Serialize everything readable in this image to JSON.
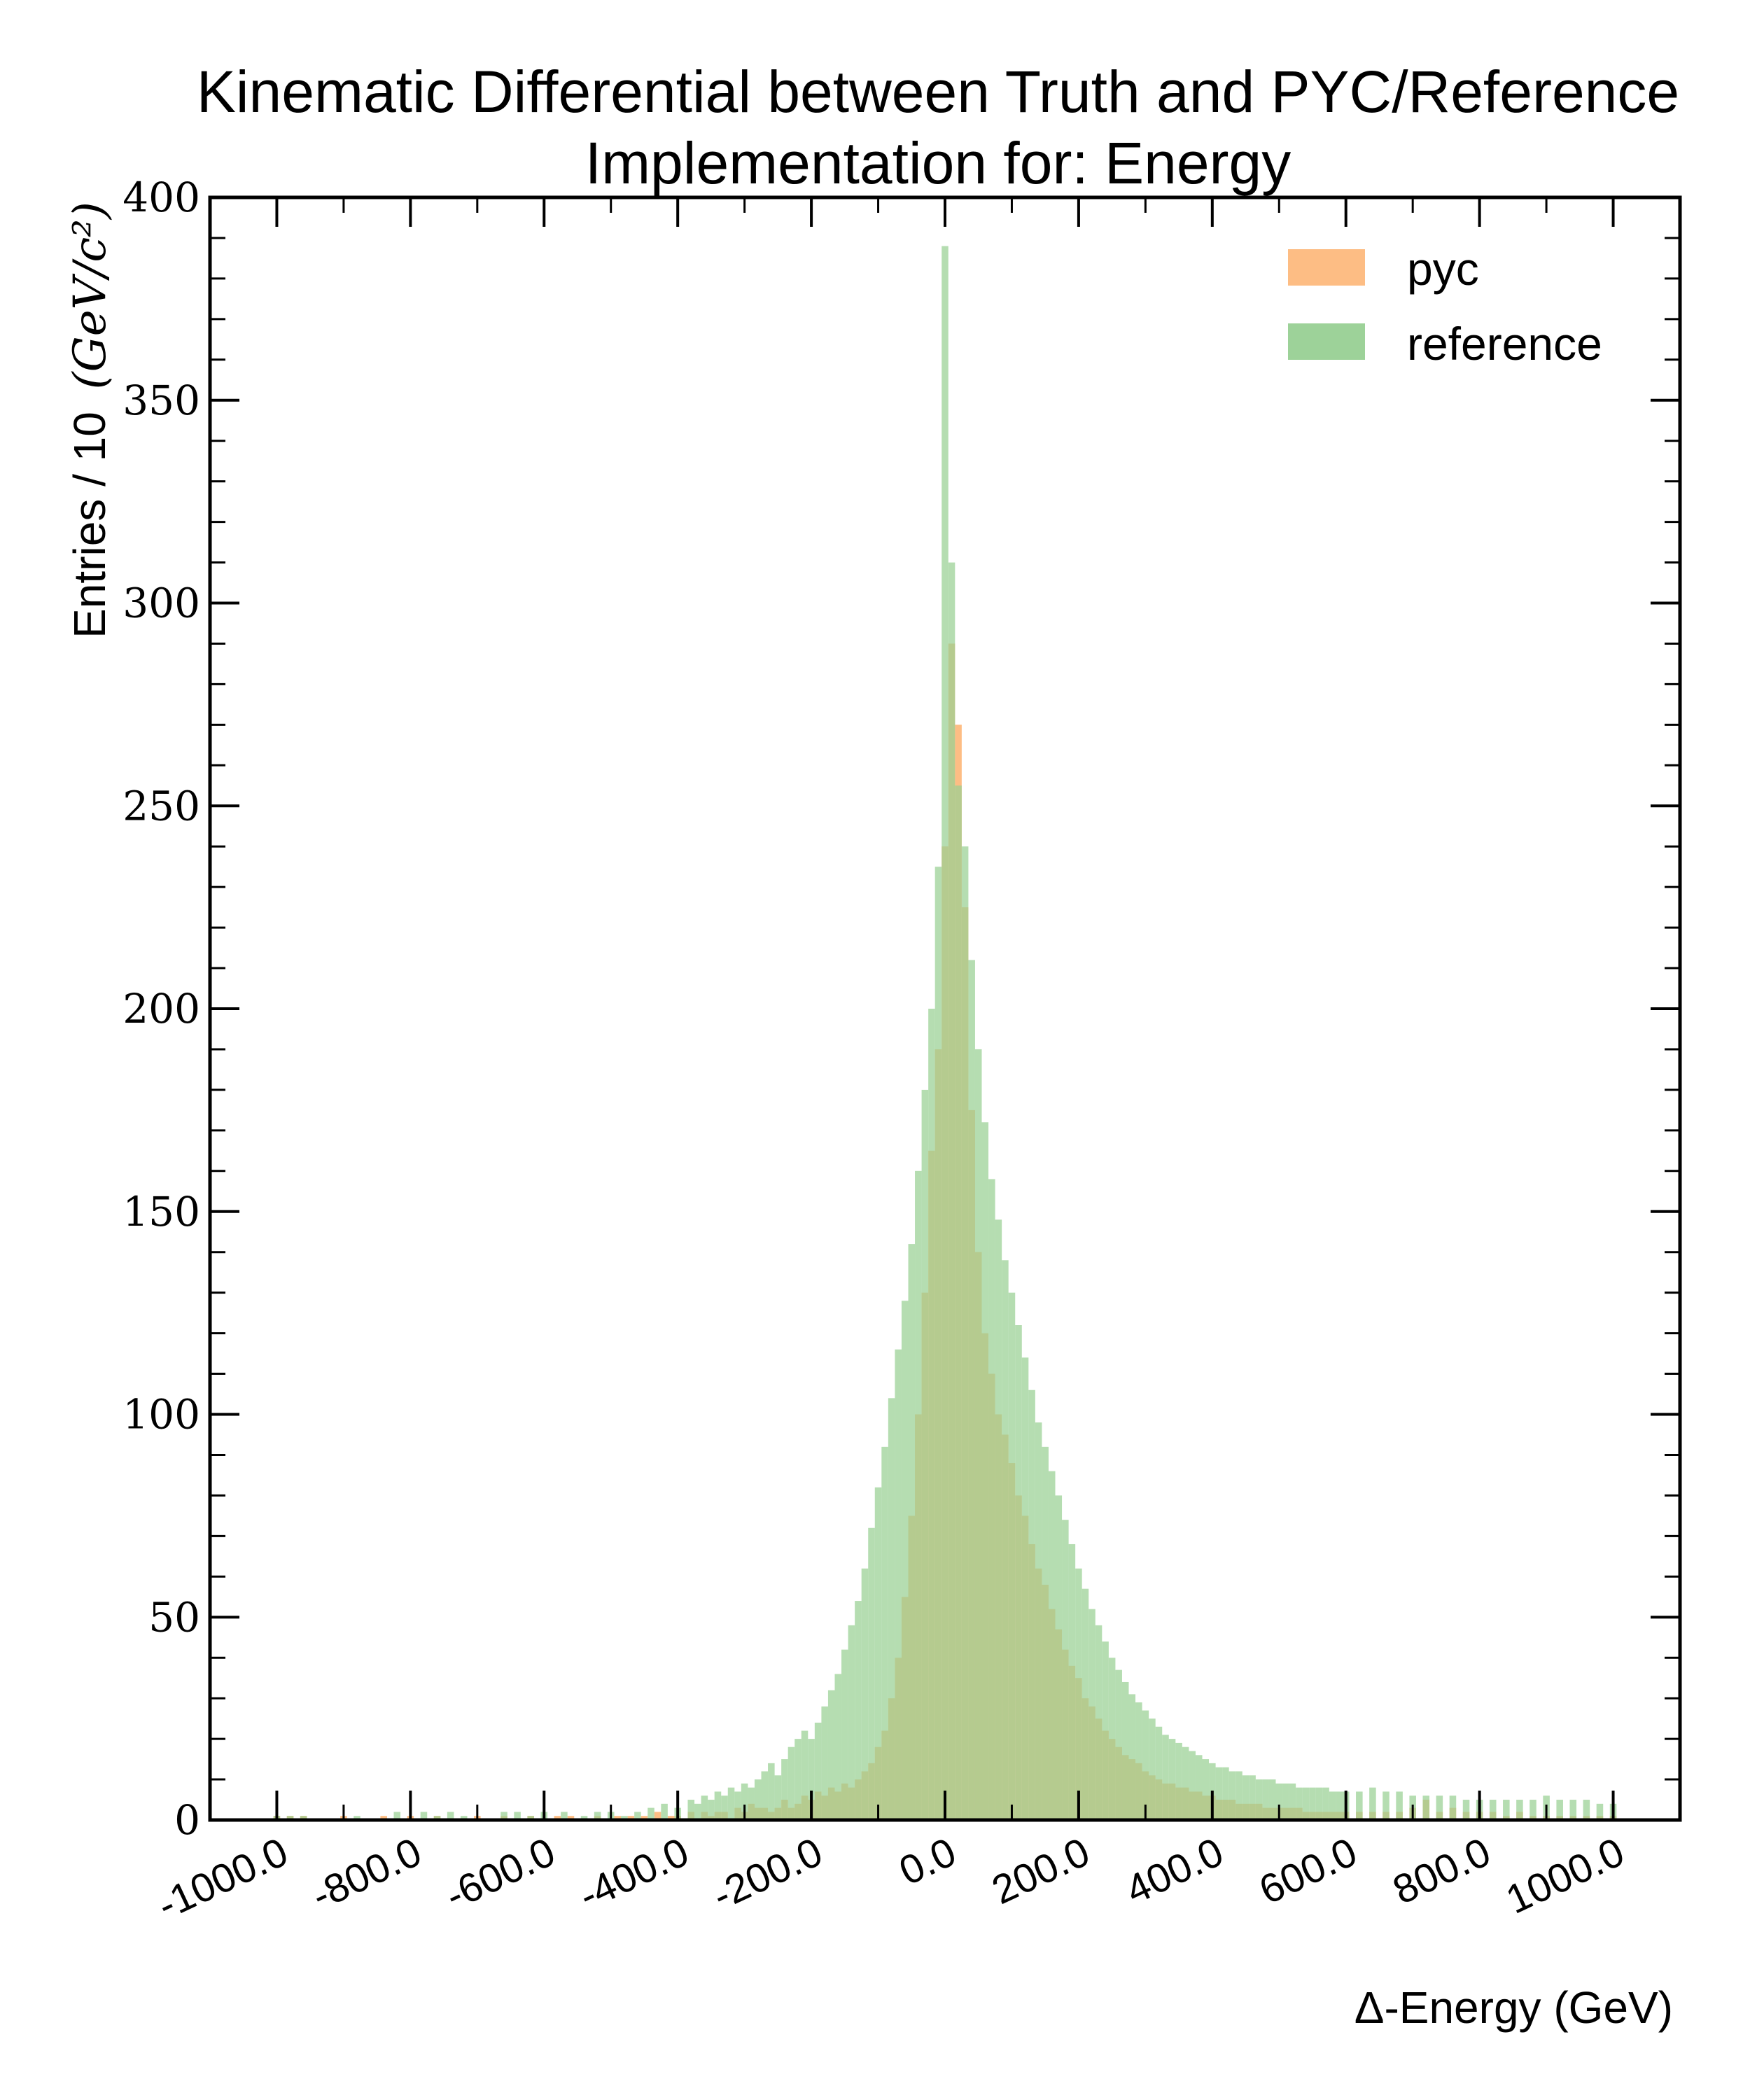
{
  "chart_data": {
    "type": "bar",
    "title_lines": [
      "Kinematic Differential between Truth and PYC/Reference",
      "Implementation for: Energy"
    ],
    "xlabel": "Δ-Energy (GeV)",
    "ylabel": "Entries / 10",
    "ylabel_unit": "(GeV/c²)",
    "xlim": [
      -1100,
      1100
    ],
    "ylim": [
      0,
      400
    ],
    "x_tick_values": [
      -1000,
      -800,
      -600,
      -400,
      -200,
      0,
      200,
      400,
      600,
      800,
      1000
    ],
    "x_tick_labels": [
      "-1000.0",
      "-800.0",
      "-600.0",
      "-400.0",
      "-200.0",
      "0.0",
      "200.0",
      "400.0",
      "600.0",
      "800.0",
      "1000.0"
    ],
    "y_tick_values": [
      0,
      50,
      100,
      150,
      200,
      250,
      300,
      350,
      400
    ],
    "y_tick_labels": [
      "0",
      "50",
      "100",
      "150",
      "200",
      "250",
      "300",
      "350",
      "400"
    ],
    "legend_position": "top-right",
    "bin_width": 10,
    "series": [
      {
        "name": "pyc",
        "color": "#fdb97d",
        "points": [
          [
            -1000,
            1
          ],
          [
            -980,
            1
          ],
          [
            -960,
            1
          ],
          [
            -900,
            1
          ],
          [
            -840,
            1
          ],
          [
            -800,
            1
          ],
          [
            -760,
            1
          ],
          [
            -700,
            1
          ],
          [
            -660,
            1
          ],
          [
            -620,
            1
          ],
          [
            -580,
            1
          ],
          [
            -560,
            1
          ],
          [
            -520,
            1
          ],
          [
            -490,
            1
          ],
          [
            -470,
            1
          ],
          [
            -450,
            1
          ],
          [
            -430,
            2
          ],
          [
            -410,
            1
          ],
          [
            -400,
            1
          ],
          [
            -380,
            2
          ],
          [
            -360,
            2
          ],
          [
            -350,
            1
          ],
          [
            -340,
            2
          ],
          [
            -330,
            2
          ],
          [
            -310,
            3
          ],
          [
            -300,
            2
          ],
          [
            -290,
            4
          ],
          [
            -280,
            3
          ],
          [
            -270,
            3
          ],
          [
            -260,
            2
          ],
          [
            -250,
            3
          ],
          [
            -240,
            5
          ],
          [
            -230,
            3
          ],
          [
            -220,
            4
          ],
          [
            -210,
            6
          ],
          [
            -200,
            5
          ],
          [
            -190,
            7
          ],
          [
            -180,
            6
          ],
          [
            -170,
            8
          ],
          [
            -160,
            7
          ],
          [
            -150,
            9
          ],
          [
            -140,
            8
          ],
          [
            -130,
            10
          ],
          [
            -120,
            12
          ],
          [
            -110,
            14
          ],
          [
            -100,
            18
          ],
          [
            -90,
            22
          ],
          [
            -80,
            30
          ],
          [
            -70,
            40
          ],
          [
            -60,
            55
          ],
          [
            -50,
            75
          ],
          [
            -40,
            100
          ],
          [
            -30,
            130
          ],
          [
            -20,
            165
          ],
          [
            -10,
            190
          ],
          [
            0,
            240
          ],
          [
            10,
            290
          ],
          [
            20,
            270
          ],
          [
            30,
            225
          ],
          [
            40,
            175
          ],
          [
            50,
            140
          ],
          [
            60,
            120
          ],
          [
            70,
            110
          ],
          [
            80,
            100
          ],
          [
            90,
            95
          ],
          [
            100,
            88
          ],
          [
            110,
            80
          ],
          [
            120,
            75
          ],
          [
            130,
            68
          ],
          [
            140,
            62
          ],
          [
            150,
            58
          ],
          [
            160,
            52
          ],
          [
            170,
            47
          ],
          [
            180,
            42
          ],
          [
            190,
            38
          ],
          [
            200,
            35
          ],
          [
            210,
            30
          ],
          [
            220,
            28
          ],
          [
            230,
            25
          ],
          [
            240,
            22
          ],
          [
            250,
            20
          ],
          [
            260,
            18
          ],
          [
            270,
            16
          ],
          [
            280,
            15
          ],
          [
            290,
            14
          ],
          [
            300,
            12
          ],
          [
            310,
            11
          ],
          [
            320,
            10
          ],
          [
            330,
            9
          ],
          [
            340,
            9
          ],
          [
            350,
            8
          ],
          [
            360,
            8
          ],
          [
            370,
            7
          ],
          [
            380,
            7
          ],
          [
            390,
            6
          ],
          [
            400,
            6
          ],
          [
            410,
            5
          ],
          [
            420,
            5
          ],
          [
            430,
            5
          ],
          [
            440,
            4
          ],
          [
            450,
            4
          ],
          [
            460,
            4
          ],
          [
            470,
            4
          ],
          [
            480,
            3
          ],
          [
            490,
            3
          ],
          [
            500,
            3
          ],
          [
            510,
            3
          ],
          [
            520,
            3
          ],
          [
            530,
            3
          ],
          [
            540,
            2
          ],
          [
            550,
            2
          ],
          [
            560,
            2
          ],
          [
            570,
            2
          ],
          [
            580,
            2
          ],
          [
            590,
            2
          ],
          [
            600,
            2
          ],
          [
            620,
            2
          ],
          [
            640,
            2
          ],
          [
            660,
            2
          ],
          [
            680,
            2
          ],
          [
            700,
            3
          ],
          [
            720,
            5
          ],
          [
            740,
            2
          ],
          [
            760,
            3
          ],
          [
            780,
            2
          ],
          [
            800,
            2
          ],
          [
            820,
            2
          ],
          [
            840,
            1
          ],
          [
            860,
            2
          ],
          [
            880,
            1
          ],
          [
            900,
            1
          ],
          [
            920,
            1
          ],
          [
            940,
            1
          ],
          [
            960,
            1
          ],
          [
            980,
            1
          ],
          [
            1000,
            1
          ]
        ]
      },
      {
        "name": "reference",
        "color": "#98d093",
        "points": [
          [
            -1000,
            1
          ],
          [
            -980,
            1
          ],
          [
            -960,
            1
          ],
          [
            -880,
            1
          ],
          [
            -820,
            2
          ],
          [
            -780,
            2
          ],
          [
            -760,
            1
          ],
          [
            -740,
            2
          ],
          [
            -720,
            1
          ],
          [
            -660,
            2
          ],
          [
            -640,
            2
          ],
          [
            -620,
            1
          ],
          [
            -600,
            2
          ],
          [
            -570,
            2
          ],
          [
            -540,
            1
          ],
          [
            -520,
            2
          ],
          [
            -500,
            2
          ],
          [
            -480,
            1
          ],
          [
            -460,
            2
          ],
          [
            -440,
            3
          ],
          [
            -420,
            4
          ],
          [
            -400,
            3
          ],
          [
            -380,
            5
          ],
          [
            -370,
            4
          ],
          [
            -360,
            6
          ],
          [
            -350,
            5
          ],
          [
            -340,
            7
          ],
          [
            -330,
            6
          ],
          [
            -320,
            8
          ],
          [
            -310,
            7
          ],
          [
            -300,
            9
          ],
          [
            -290,
            8
          ],
          [
            -280,
            10
          ],
          [
            -270,
            12
          ],
          [
            -260,
            14
          ],
          [
            -250,
            11
          ],
          [
            -240,
            15
          ],
          [
            -230,
            18
          ],
          [
            -220,
            20
          ],
          [
            -210,
            22
          ],
          [
            -200,
            20
          ],
          [
            -190,
            24
          ],
          [
            -180,
            28
          ],
          [
            -170,
            32
          ],
          [
            -160,
            36
          ],
          [
            -150,
            42
          ],
          [
            -140,
            48
          ],
          [
            -130,
            54
          ],
          [
            -120,
            62
          ],
          [
            -110,
            72
          ],
          [
            -100,
            82
          ],
          [
            -90,
            92
          ],
          [
            -80,
            104
          ],
          [
            -70,
            116
          ],
          [
            -60,
            128
          ],
          [
            -50,
            142
          ],
          [
            -40,
            160
          ],
          [
            -30,
            180
          ],
          [
            -20,
            200
          ],
          [
            -10,
            235
          ],
          [
            0,
            388
          ],
          [
            10,
            310
          ],
          [
            20,
            255
          ],
          [
            30,
            240
          ],
          [
            40,
            212
          ],
          [
            50,
            190
          ],
          [
            60,
            172
          ],
          [
            70,
            158
          ],
          [
            80,
            148
          ],
          [
            90,
            138
          ],
          [
            100,
            130
          ],
          [
            110,
            122
          ],
          [
            120,
            114
          ],
          [
            130,
            106
          ],
          [
            140,
            98
          ],
          [
            150,
            92
          ],
          [
            160,
            86
          ],
          [
            170,
            80
          ],
          [
            180,
            74
          ],
          [
            190,
            68
          ],
          [
            200,
            62
          ],
          [
            210,
            57
          ],
          [
            220,
            52
          ],
          [
            230,
            48
          ],
          [
            240,
            44
          ],
          [
            250,
            40
          ],
          [
            260,
            37
          ],
          [
            270,
            34
          ],
          [
            280,
            31
          ],
          [
            290,
            29
          ],
          [
            300,
            27
          ],
          [
            310,
            25
          ],
          [
            320,
            23
          ],
          [
            330,
            21
          ],
          [
            340,
            20
          ],
          [
            350,
            19
          ],
          [
            360,
            18
          ],
          [
            370,
            17
          ],
          [
            380,
            16
          ],
          [
            390,
            15
          ],
          [
            400,
            14
          ],
          [
            410,
            13
          ],
          [
            420,
            13
          ],
          [
            430,
            12
          ],
          [
            440,
            12
          ],
          [
            450,
            11
          ],
          [
            460,
            11
          ],
          [
            470,
            10
          ],
          [
            480,
            10
          ],
          [
            490,
            10
          ],
          [
            500,
            9
          ],
          [
            510,
            9
          ],
          [
            520,
            9
          ],
          [
            530,
            8
          ],
          [
            540,
            8
          ],
          [
            550,
            8
          ],
          [
            560,
            8
          ],
          [
            570,
            8
          ],
          [
            580,
            7
          ],
          [
            590,
            7
          ],
          [
            600,
            7
          ],
          [
            620,
            7
          ],
          [
            640,
            8
          ],
          [
            660,
            7
          ],
          [
            680,
            7
          ],
          [
            700,
            6
          ],
          [
            720,
            6
          ],
          [
            740,
            6
          ],
          [
            760,
            6
          ],
          [
            780,
            5
          ],
          [
            800,
            5
          ],
          [
            820,
            5
          ],
          [
            840,
            5
          ],
          [
            860,
            5
          ],
          [
            880,
            5
          ],
          [
            900,
            6
          ],
          [
            920,
            5
          ],
          [
            940,
            5
          ],
          [
            960,
            5
          ],
          [
            980,
            4
          ],
          [
            1000,
            4
          ]
        ]
      }
    ]
  }
}
